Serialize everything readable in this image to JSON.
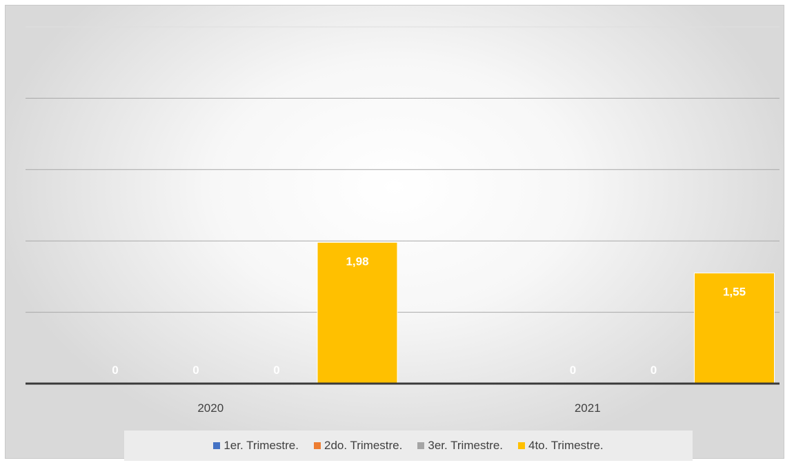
{
  "chart_data": {
    "type": "bar",
    "categories": [
      "2020",
      "2021"
    ],
    "series": [
      {
        "name": "1er. Trimestre.",
        "color": "#4472c4",
        "values": [
          0,
          null
        ],
        "labels": [
          "0",
          ""
        ]
      },
      {
        "name": "2do. Trimestre.",
        "color": "#ed7d31",
        "values": [
          0,
          0
        ],
        "labels": [
          "0",
          "0"
        ]
      },
      {
        "name": "3er. Trimestre.",
        "color": "#a5a5a5",
        "values": [
          0,
          0
        ],
        "labels": [
          "0",
          "0"
        ]
      },
      {
        "name": "4to. Trimestre.",
        "color": "#ffc000",
        "values": [
          1.98,
          1.55
        ],
        "labels": [
          "1,98",
          "1,55"
        ]
      }
    ],
    "ylim": [
      0,
      5
    ],
    "ytick_step": 1,
    "y_tick_labels_visible": false,
    "grid": true,
    "legend_position": "bottom"
  }
}
